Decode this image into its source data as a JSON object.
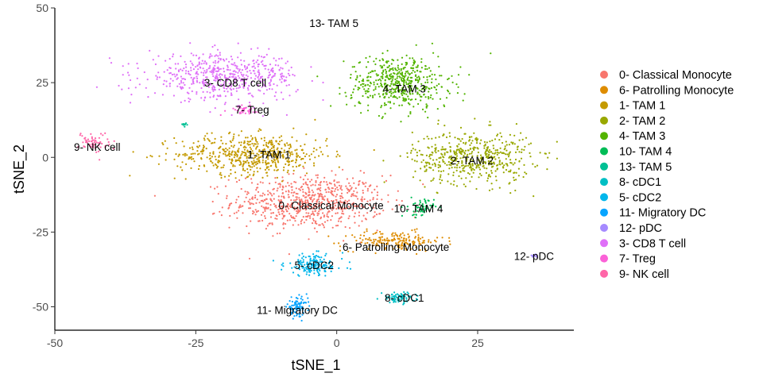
{
  "chart_data": {
    "type": "scatter",
    "xlabel": "tSNE_1",
    "ylabel": "tSNE_2",
    "xlim": [
      -50,
      42
    ],
    "ylim": [
      -58,
      50
    ],
    "xticks": [
      -50,
      -25,
      0,
      25
    ],
    "yticks": [
      50,
      25,
      0,
      -25,
      -50
    ],
    "grid": false,
    "legend_position": "right",
    "clusters": [
      {
        "label": "0- Classical Monocyte",
        "color": "#F8766D",
        "center": [
          -5,
          -15
        ],
        "spread": [
          9,
          6
        ],
        "n": 700
      },
      {
        "label": "6- Patrolling Monocyte",
        "color": "#DE8C00",
        "center": [
          10,
          -28
        ],
        "spread": [
          6,
          2.2
        ],
        "n": 180
      },
      {
        "label": "1- TAM 1",
        "color": "#C49A00",
        "center": [
          -15,
          1
        ],
        "spread": [
          9,
          4.5
        ],
        "n": 550
      },
      {
        "label": "2- TAM 2",
        "color": "#99A800",
        "center": [
          24,
          0
        ],
        "spread": [
          7,
          6
        ],
        "n": 520
      },
      {
        "label": "4- TAM 3",
        "color": "#53B400",
        "center": [
          11,
          25
        ],
        "spread": [
          6,
          6
        ],
        "n": 500
      },
      {
        "label": "10- TAM 4",
        "color": "#00BC56",
        "center": [
          15,
          -17
        ],
        "spread": [
          1.5,
          2
        ],
        "n": 60
      },
      {
        "label": "13- TAM 5",
        "color": "#00C094",
        "center": [
          -27,
          11
        ],
        "spread": [
          0.4,
          0.4
        ],
        "n": 8
      },
      {
        "label": "8- cDC1",
        "color": "#00BFC4",
        "center": [
          11,
          -47
        ],
        "spread": [
          2,
          1.2
        ],
        "n": 80
      },
      {
        "label": "5- cDC2",
        "color": "#00B6EB",
        "center": [
          -4,
          -36
        ],
        "spread": [
          3.5,
          2.4
        ],
        "n": 160
      },
      {
        "label": "11- Migratory DC",
        "color": "#06A4FF",
        "center": [
          -7,
          -50
        ],
        "spread": [
          1.2,
          2
        ],
        "n": 90
      },
      {
        "label": "12- pDC",
        "color": "#A58AFF",
        "center": [
          35,
          -33
        ],
        "spread": [
          0.5,
          0.4
        ],
        "n": 12
      },
      {
        "label": "3- CD8 T cell",
        "color": "#DF70F8",
        "center": [
          -20,
          27
        ],
        "spread": [
          9,
          5
        ],
        "n": 550
      },
      {
        "label": "7- Treg",
        "color": "#FB61D7",
        "center": [
          -17,
          16
        ],
        "spread": [
          2,
          1
        ],
        "n": 40
      },
      {
        "label": "9- NK cell",
        "color": "#FF66A8",
        "center": [
          -43,
          5
        ],
        "spread": [
          1.8,
          2.4
        ],
        "n": 60
      }
    ],
    "annotations": [
      {
        "text": "13- TAM 5",
        "x": -0.5,
        "y": 45
      },
      {
        "text": "3- CD8 T cell",
        "x": -18,
        "y": 25
      },
      {
        "text": "4- TAM 3",
        "x": 12,
        "y": 23
      },
      {
        "text": "7- Treg",
        "x": -15,
        "y": 16
      },
      {
        "text": "9- NK cell",
        "x": -42.5,
        "y": 3.5
      },
      {
        "text": "1- TAM 1",
        "x": -12,
        "y": 1
      },
      {
        "text": "2- TAM 2",
        "x": 24,
        "y": -1
      },
      {
        "text": "0- Classical Monocyte",
        "x": -1,
        "y": -16
      },
      {
        "text": "10- TAM 4",
        "x": 14.5,
        "y": -17
      },
      {
        "text": "6- Patrolling Monocyte",
        "x": 10.5,
        "y": -30
      },
      {
        "text": "12- pDC",
        "x": 35,
        "y": -33
      },
      {
        "text": "5- cDC2",
        "x": -4,
        "y": -36
      },
      {
        "text": "8- cDC1",
        "x": 12,
        "y": -47
      },
      {
        "text": "11- Migratory DC",
        "x": -7,
        "y": -51
      }
    ]
  }
}
